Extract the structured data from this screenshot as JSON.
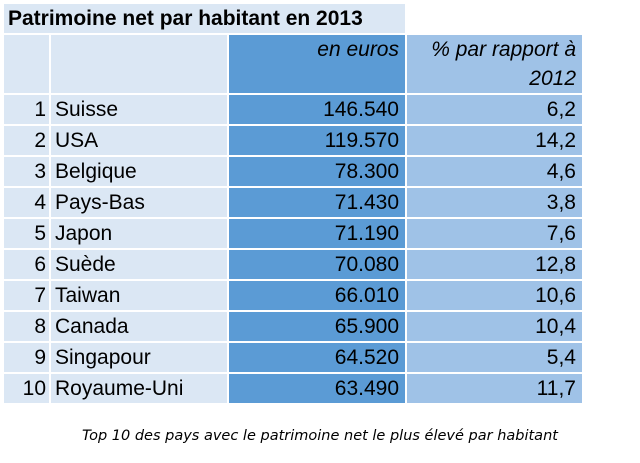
{
  "chart_data": {
    "type": "table",
    "title": "Patrimoine net par habitant en 2013",
    "columns": [
      "",
      "",
      "en euros",
      "% par rapport à 2012"
    ],
    "rows": [
      {
        "rank": "1",
        "country": "Suisse",
        "value": "146.540",
        "pct": "6,2"
      },
      {
        "rank": "2",
        "country": "USA",
        "value": "119.570",
        "pct": "14,2"
      },
      {
        "rank": "3",
        "country": "Belgique",
        "value": "78.300",
        "pct": "4,6"
      },
      {
        "rank": "4",
        "country": "Pays-Bas",
        "value": "71.430",
        "pct": "3,8"
      },
      {
        "rank": "5",
        "country": "Japon",
        "value": "71.190",
        "pct": "7,6"
      },
      {
        "rank": "6",
        "country": "Suède",
        "value": "70.080",
        "pct": "12,8"
      },
      {
        "rank": "7",
        "country": "Taiwan",
        "value": "66.010",
        "pct": "10,6"
      },
      {
        "rank": "8",
        "country": "Canada",
        "value": "65.900",
        "pct": "10,4"
      },
      {
        "rank": "9",
        "country": "Singapour",
        "value": "64.520",
        "pct": "5,4"
      },
      {
        "rank": "10",
        "country": "Royaume-Uni",
        "value": "63.490",
        "pct": "11,7"
      }
    ],
    "header": {
      "value_label": "en euros",
      "pct_label_line1": "% par rapport à",
      "pct_label_line2": "2012"
    },
    "caption": "Top 10 des pays avec le patrimoine net le plus élevé par habitant",
    "colors": {
      "light": "#dbe7f4",
      "dark": "#5b9bd5",
      "mid": "#9fc2e7"
    }
  }
}
